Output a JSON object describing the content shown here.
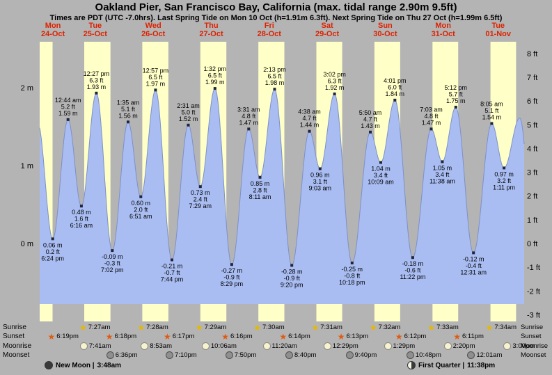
{
  "title": "Oakland Pier, San Francisco Bay, California (max. tidal range 2.90m 9.5ft)",
  "subtitle": "Times are PDT (UTC -7.0hrs). Last Spring Tide on Mon 10 Oct (h=1.91m 6.3ft). Next Spring Tide on Thu 27 Oct (h=1.99m 6.5ft)",
  "colors": {
    "page_bg": "#b4b4b4",
    "night_band": "#b4b4b4",
    "daylight_band": "#ffffc8",
    "tide_fill": "#a9bdf2",
    "tide_stroke": "#7d90c8",
    "extreme_dot": "#20243c",
    "date_red": "#dd2200",
    "text_black": "#000000",
    "sunrise_star": "#e6b800",
    "sunset_star": "#e05a10"
  },
  "chart_data": {
    "type": "area",
    "description": "Tide height curve over 9 day columns, daylight shown as yellow bands, night as gray",
    "days": [
      {
        "dow": "Mon",
        "date": "24-Oct"
      },
      {
        "dow": "Tue",
        "date": "25-Oct"
      },
      {
        "dow": "Wed",
        "date": "26-Oct"
      },
      {
        "dow": "Thu",
        "date": "27-Oct"
      },
      {
        "dow": "Fri",
        "date": "28-Oct"
      },
      {
        "dow": "Sat",
        "date": "29-Oct"
      },
      {
        "dow": "Sun",
        "date": "30-Oct"
      },
      {
        "dow": "Mon",
        "date": "31-Oct"
      },
      {
        "dow": "Tue",
        "date": "01-Nov"
      }
    ],
    "y_axis_left": [
      {
        "label": "2 m",
        "value_m": 2
      },
      {
        "label": "1 m",
        "value_m": 1
      },
      {
        "label": "0 m",
        "value_m": 0
      }
    ],
    "y_axis_right": [
      {
        "label": "8 ft",
        "value_ft": 8
      },
      {
        "label": "7 ft",
        "value_ft": 7
      },
      {
        "label": "6 ft",
        "value_ft": 6
      },
      {
        "label": "5 ft",
        "value_ft": 5
      },
      {
        "label": "4 ft",
        "value_ft": 4
      },
      {
        "label": "3 ft",
        "value_ft": 3
      },
      {
        "label": "2 ft",
        "value_ft": 2
      },
      {
        "label": "1 ft",
        "value_ft": 1
      },
      {
        "label": "0 ft",
        "value_ft": 0
      },
      {
        "label": "-1 ft",
        "value_ft": -1
      },
      {
        "label": "-2 ft",
        "value_ft": -2
      },
      {
        "label": "-3 ft",
        "value_ft": -3
      }
    ],
    "tides": [
      {
        "date": "24-Oct",
        "time": "6:24 pm",
        "type": "low",
        "height_m": 0.06,
        "height_ft": 0.2
      },
      {
        "date": "25-Oct",
        "time": "12:44 am",
        "type": "high",
        "height_m": 1.59,
        "height_ft": 5.2
      },
      {
        "date": "25-Oct",
        "time": "6:16 am",
        "type": "low",
        "height_m": 0.48,
        "height_ft": 1.6
      },
      {
        "date": "25-Oct",
        "time": "12:27 pm",
        "type": "high",
        "height_m": 1.93,
        "height_ft": 6.3
      },
      {
        "date": "25-Oct",
        "time": "7:02 pm",
        "type": "low",
        "height_m": -0.09,
        "height_ft": -0.3
      },
      {
        "date": "26-Oct",
        "time": "1:35 am",
        "type": "high",
        "height_m": 1.56,
        "height_ft": 5.1
      },
      {
        "date": "26-Oct",
        "time": "6:51 am",
        "type": "low",
        "height_m": 0.6,
        "height_ft": 2.0
      },
      {
        "date": "26-Oct",
        "time": "12:57 pm",
        "type": "high",
        "height_m": 1.97,
        "height_ft": 6.5
      },
      {
        "date": "26-Oct",
        "time": "7:44 pm",
        "type": "low",
        "height_m": -0.21,
        "height_ft": -0.7
      },
      {
        "date": "27-Oct",
        "time": "2:31 am",
        "type": "high",
        "height_m": 1.52,
        "height_ft": 5.0
      },
      {
        "date": "27-Oct",
        "time": "7:29 am",
        "type": "low",
        "height_m": 0.73,
        "height_ft": 2.4
      },
      {
        "date": "27-Oct",
        "time": "1:32 pm",
        "type": "high",
        "height_m": 1.99,
        "height_ft": 6.5
      },
      {
        "date": "27-Oct",
        "time": "8:29 pm",
        "type": "low",
        "height_m": -0.27,
        "height_ft": -0.9
      },
      {
        "date": "28-Oct",
        "time": "3:31 am",
        "type": "high",
        "height_m": 1.47,
        "height_ft": 4.8
      },
      {
        "date": "28-Oct",
        "time": "8:11 am",
        "type": "low",
        "height_m": 0.85,
        "height_ft": 2.8
      },
      {
        "date": "28-Oct",
        "time": "2:13 pm",
        "type": "high",
        "height_m": 1.98,
        "height_ft": 6.5
      },
      {
        "date": "28-Oct",
        "time": "9:20 pm",
        "type": "low",
        "height_m": -0.28,
        "height_ft": -0.9
      },
      {
        "date": "29-Oct",
        "time": "4:38 am",
        "type": "high",
        "height_m": 1.44,
        "height_ft": 4.7
      },
      {
        "date": "29-Oct",
        "time": "9:03 am",
        "type": "low",
        "height_m": 0.96,
        "height_ft": 3.1
      },
      {
        "date": "29-Oct",
        "time": "3:02 pm",
        "type": "high",
        "height_m": 1.92,
        "height_ft": 6.3
      },
      {
        "date": "29-Oct",
        "time": "10:18 pm",
        "type": "low",
        "height_m": -0.25,
        "height_ft": -0.8
      },
      {
        "date": "30-Oct",
        "time": "5:50 am",
        "type": "high",
        "height_m": 1.43,
        "height_ft": 4.7
      },
      {
        "date": "30-Oct",
        "time": "10:09 am",
        "type": "low",
        "height_m": 1.04,
        "height_ft": 3.4
      },
      {
        "date": "30-Oct",
        "time": "4:01 pm",
        "type": "high",
        "height_m": 1.84,
        "height_ft": 6.0
      },
      {
        "date": "30-Oct",
        "time": "11:22 pm",
        "type": "low",
        "height_m": -0.18,
        "height_ft": -0.6
      },
      {
        "date": "31-Oct",
        "time": "7:03 am",
        "type": "high",
        "height_m": 1.47,
        "height_ft": 4.8
      },
      {
        "date": "31-Oct",
        "time": "11:38 am",
        "type": "low",
        "height_m": 1.05,
        "height_ft": 3.4
      },
      {
        "date": "31-Oct",
        "time": "5:12 pm",
        "type": "high",
        "height_m": 1.75,
        "height_ft": 5.7
      },
      {
        "date": "01-Nov",
        "time": "12:31 am",
        "type": "low",
        "height_m": -0.12,
        "height_ft": -0.4
      },
      {
        "date": "01-Nov",
        "time": "8:05 am",
        "type": "high",
        "height_m": 1.54,
        "height_ft": 5.1
      },
      {
        "date": "01-Nov",
        "time": "1:11 pm",
        "type": "low",
        "height_m": 0.97,
        "height_ft": 3.2
      }
    ],
    "curve_edges": [
      {
        "date": "24-Oct",
        "time": "12:10 pm",
        "height_m": 1.55
      },
      {
        "date": "01-Nov",
        "time": "7:40 pm",
        "height_m": 1.61
      }
    ],
    "sun": {
      "sunrise": [
        {
          "date": "25-Oct",
          "time": "7:27am"
        },
        {
          "date": "26-Oct",
          "time": "7:28am"
        },
        {
          "date": "27-Oct",
          "time": "7:29am"
        },
        {
          "date": "28-Oct",
          "time": "7:30am"
        },
        {
          "date": "29-Oct",
          "time": "7:31am"
        },
        {
          "date": "30-Oct",
          "time": "7:32am"
        },
        {
          "date": "31-Oct",
          "time": "7:33am"
        },
        {
          "date": "01-Nov",
          "time": "7:34am"
        }
      ],
      "sunset": [
        {
          "date": "24-Oct",
          "time": "6:19pm"
        },
        {
          "date": "25-Oct",
          "time": "6:18pm"
        },
        {
          "date": "26-Oct",
          "time": "6:17pm"
        },
        {
          "date": "27-Oct",
          "time": "6:16pm"
        },
        {
          "date": "28-Oct",
          "time": "6:14pm"
        },
        {
          "date": "29-Oct",
          "time": "6:13pm"
        },
        {
          "date": "30-Oct",
          "time": "6:12pm"
        },
        {
          "date": "31-Oct",
          "time": "6:11pm"
        }
      ],
      "last_day_daylight_end_estimate": "6:10pm",
      "moonrise": [
        {
          "date": "25-Oct",
          "time": "7:41am"
        },
        {
          "date": "26-Oct",
          "time": "8:53am"
        },
        {
          "date": "27-Oct",
          "time": "10:06am"
        },
        {
          "date": "28-Oct",
          "time": "11:20am"
        },
        {
          "date": "29-Oct",
          "time": "12:29pm"
        },
        {
          "date": "30-Oct",
          "time": "1:29pm"
        },
        {
          "date": "31-Oct",
          "time": "2:20pm"
        },
        {
          "date": "01-Nov",
          "time": "3:00pm"
        }
      ],
      "moonset": [
        {
          "date": "25-Oct",
          "time": "6:36pm"
        },
        {
          "date": "26-Oct",
          "time": "7:10pm"
        },
        {
          "date": "27-Oct",
          "time": "7:50pm"
        },
        {
          "date": "28-Oct",
          "time": "8:40pm"
        },
        {
          "date": "29-Oct",
          "time": "9:40pm"
        },
        {
          "date": "30-Oct",
          "time": "10:48pm"
        },
        {
          "date": "01-Nov",
          "time": "12:01am"
        }
      ]
    }
  },
  "astro": {
    "rows": [
      {
        "id": "sunrise",
        "label": "Sunrise"
      },
      {
        "id": "sunset",
        "label": "Sunset"
      },
      {
        "id": "moonrise",
        "label": "Moonrise"
      },
      {
        "id": "moonset",
        "label": "Moonset"
      }
    ]
  },
  "moon_phases": [
    {
      "name": "New Moon",
      "time": "3:48am"
    },
    {
      "name": "First Quarter",
      "time": "11:38pm"
    }
  ]
}
